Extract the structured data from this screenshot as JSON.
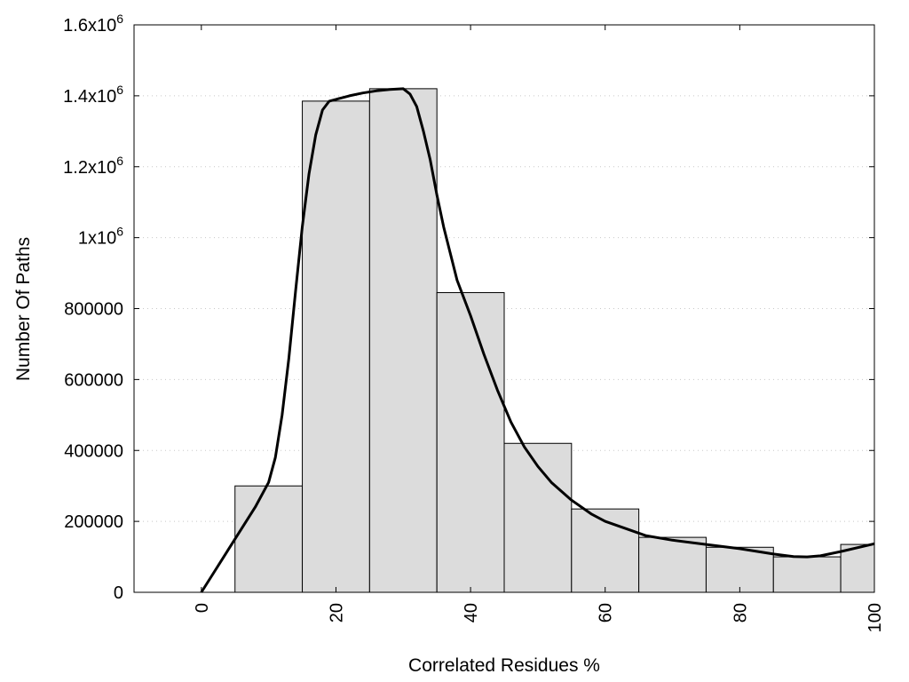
{
  "chart_data": {
    "type": "bar",
    "title": "",
    "xlabel": "Correlated Residues %",
    "ylabel": "Number Of Paths",
    "xlim": [
      -10,
      100
    ],
    "ylim": [
      0,
      1600000
    ],
    "grid": {
      "y": true,
      "x": false
    },
    "x_ticks": [
      {
        "value": 0,
        "label": "0"
      },
      {
        "value": 20,
        "label": "20"
      },
      {
        "value": 40,
        "label": "40"
      },
      {
        "value": 60,
        "label": "60"
      },
      {
        "value": 80,
        "label": "80"
      },
      {
        "value": 100,
        "label": "100"
      }
    ],
    "y_ticks": [
      {
        "value": 0,
        "label": "0"
      },
      {
        "value": 200000,
        "label": "200000"
      },
      {
        "value": 400000,
        "label": "400000"
      },
      {
        "value": 600000,
        "label": "600000"
      },
      {
        "value": 800000,
        "label": "800000"
      },
      {
        "value": 1000000,
        "label": "1x10",
        "exp": "6"
      },
      {
        "value": 1200000,
        "label": "1.2x10",
        "exp": "6"
      },
      {
        "value": 1400000,
        "label": "1.4x10",
        "exp": "6"
      },
      {
        "value": 1600000,
        "label": "1.6x10",
        "exp": "6"
      }
    ],
    "histogram": {
      "bin_width": 10,
      "bins": [
        {
          "center": 0,
          "value": 0
        },
        {
          "center": 10,
          "value": 300000
        },
        {
          "center": 20,
          "value": 1385000
        },
        {
          "center": 30,
          "value": 1420000
        },
        {
          "center": 40,
          "value": 845000
        },
        {
          "center": 50,
          "value": 420000
        },
        {
          "center": 60,
          "value": 235000
        },
        {
          "center": 70,
          "value": 155000
        },
        {
          "center": 80,
          "value": 127000
        },
        {
          "center": 90,
          "value": 100000
        },
        {
          "center": 100,
          "value": 135000
        }
      ]
    },
    "smooth_curve": {
      "x": [
        0,
        2,
        4,
        6,
        8,
        10,
        11,
        12,
        13,
        14,
        15,
        16,
        17,
        18,
        19,
        20,
        21,
        22,
        24,
        26,
        28,
        30,
        31,
        32,
        33,
        34,
        35,
        36,
        38,
        40,
        42,
        44,
        46,
        48,
        50,
        52,
        55,
        58,
        60,
        63,
        66,
        70,
        75,
        80,
        85,
        88,
        90,
        92,
        95,
        100
      ],
      "y": [
        0,
        60000,
        120000,
        180000,
        240000,
        310000,
        380000,
        500000,
        660000,
        850000,
        1030000,
        1180000,
        1290000,
        1360000,
        1385000,
        1390000,
        1395000,
        1400000,
        1408000,
        1414000,
        1418000,
        1420000,
        1405000,
        1370000,
        1300000,
        1220000,
        1120000,
        1030000,
        880000,
        780000,
        670000,
        570000,
        480000,
        410000,
        355000,
        310000,
        260000,
        220000,
        200000,
        180000,
        160000,
        147000,
        135000,
        123000,
        108000,
        101000,
        100000,
        103000,
        115000,
        137000
      ]
    }
  }
}
